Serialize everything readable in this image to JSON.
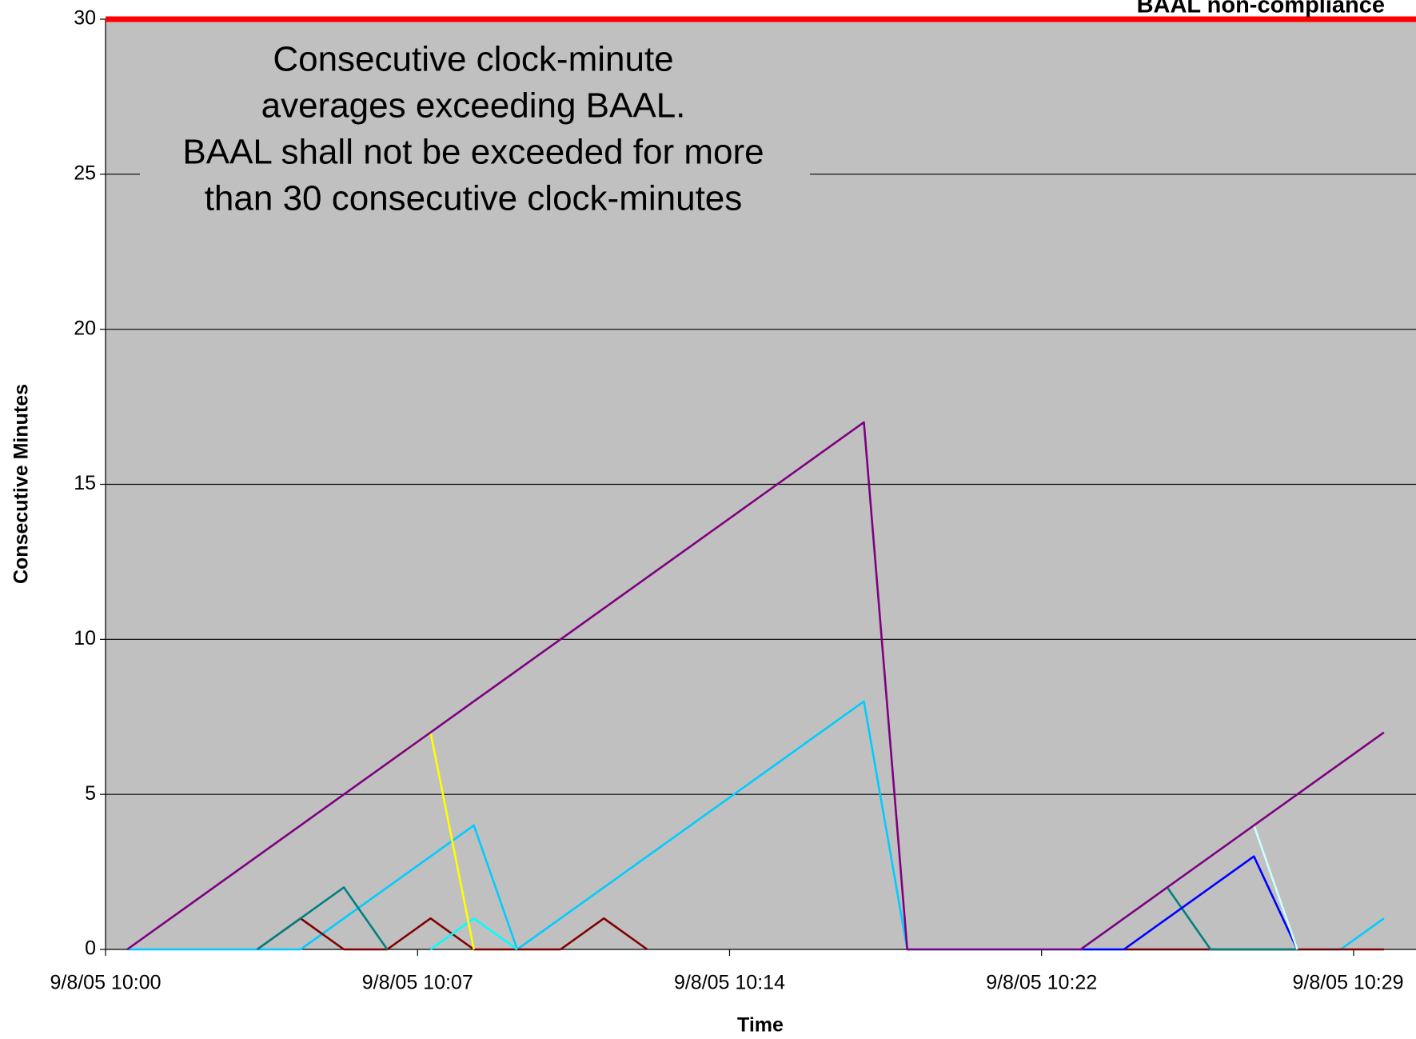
{
  "chart_data": {
    "type": "line",
    "annotation": [
      "Consecutive clock-minute",
      "averages exceeding BAAL.",
      "BAAL shall not be exceeded for more",
      "than 30 consecutive clock-minutes"
    ],
    "threshold": {
      "label": "BAAL non-compliance",
      "value": 30,
      "color": "#ff0000"
    },
    "xlabel": "Time",
    "ylabel": "Consecutive Minutes",
    "x": [
      0.5,
      1.5,
      2.5,
      3.5,
      4.5,
      5.5,
      6.5,
      7.5,
      8.5,
      9.5,
      10.5,
      11.5,
      12.5,
      13.5,
      14.5,
      15.5,
      16.5,
      17.5,
      18.5,
      19.5,
      20.5,
      21.5,
      22.5,
      23.5,
      24.5,
      25.5,
      26.5,
      27.5,
      28.5,
      29.5
    ],
    "series": [
      {
        "color": "#00ccff",
        "values": [
          0,
          0,
          0,
          0,
          0,
          1,
          2,
          3,
          4,
          0,
          1,
          2,
          3,
          4,
          5,
          6,
          7,
          8,
          0,
          0,
          0,
          0,
          0,
          0,
          0,
          0,
          0,
          0,
          0,
          1
        ]
      },
      {
        "color": "#800000",
        "values": [
          null,
          null,
          null,
          0,
          1,
          0,
          0,
          1,
          0,
          0,
          0,
          1,
          0,
          null,
          null,
          null,
          null,
          null,
          null,
          null,
          null,
          null,
          null,
          0,
          0,
          0,
          0,
          0,
          0,
          0
        ]
      },
      {
        "color": "#008080",
        "values": [
          null,
          null,
          null,
          0,
          1,
          2,
          0,
          null,
          null,
          null,
          null,
          null,
          null,
          null,
          null,
          null,
          null,
          null,
          null,
          null,
          null,
          null,
          0,
          1,
          2,
          0,
          0,
          0,
          null,
          null
        ]
      },
      {
        "color": "#00ffff",
        "values": [
          null,
          null,
          null,
          null,
          null,
          null,
          null,
          0,
          1,
          0,
          null,
          null,
          null,
          null,
          null,
          null,
          null,
          null,
          null,
          null,
          null,
          null,
          null,
          null,
          null,
          null,
          null,
          null,
          null,
          null
        ]
      },
      {
        "color": "#0000ff",
        "values": [
          null,
          null,
          null,
          null,
          null,
          null,
          null,
          null,
          null,
          null,
          null,
          null,
          null,
          null,
          null,
          null,
          null,
          null,
          null,
          null,
          null,
          null,
          0,
          0,
          1,
          2,
          3,
          0,
          null,
          null
        ]
      },
      {
        "color": "#ccffff",
        "values": [
          null,
          null,
          null,
          null,
          null,
          null,
          null,
          null,
          null,
          null,
          null,
          null,
          null,
          null,
          null,
          null,
          null,
          null,
          null,
          null,
          null,
          null,
          0,
          1,
          2,
          3,
          4,
          0,
          null,
          null
        ]
      },
      {
        "color": "#ffff00",
        "values": [
          null,
          null,
          null,
          null,
          null,
          null,
          6,
          7,
          0,
          null,
          null,
          null,
          null,
          null,
          null,
          null,
          null,
          null,
          null,
          null,
          null,
          null,
          null,
          null,
          null,
          null,
          null,
          null,
          null,
          null
        ]
      },
      {
        "color": "#800080",
        "values": [
          0,
          1,
          2,
          3,
          4,
          5,
          6,
          7,
          8,
          9,
          10,
          11,
          12,
          13,
          14,
          15,
          16,
          17,
          0,
          0,
          0,
          0,
          0,
          1,
          2,
          3,
          4,
          5,
          6,
          7
        ]
      }
    ],
    "xlim": [
      0,
      30.24
    ],
    "xticks": [
      {
        "value": 0,
        "label": "9/8/05 10:00"
      },
      {
        "value": 7.2,
        "label": "9/8/05 10:07"
      },
      {
        "value": 14.4,
        "label": "9/8/05 10:14"
      },
      {
        "value": 21.6,
        "label": "9/8/05 10:22"
      },
      {
        "value": 28.8,
        "label": "9/8/05 10:29"
      }
    ],
    "ylim": [
      0,
      30
    ],
    "yticks": [
      0,
      5,
      10,
      15,
      20,
      25,
      30
    ],
    "grid": true,
    "background": "#c0c0c0"
  }
}
